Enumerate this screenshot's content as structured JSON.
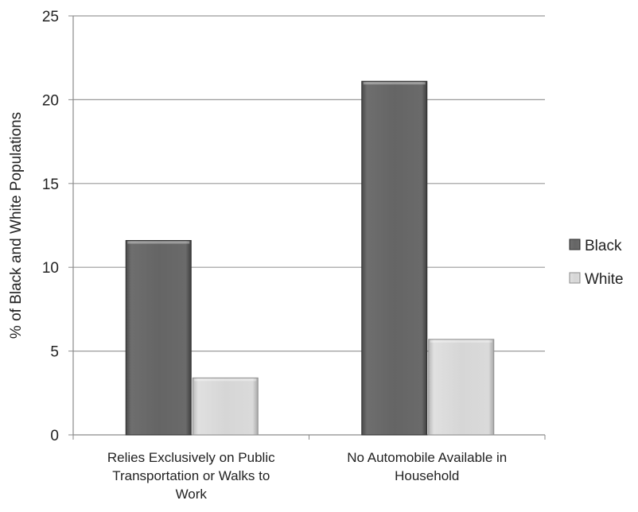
{
  "chart_data": {
    "type": "bar",
    "title": "",
    "xlabel": "",
    "ylabel": "% of Black and White Populations",
    "categories": [
      [
        "Relies Exclusively on Public",
        "Transportation or Walks to",
        "Work"
      ],
      [
        "No Automobile Available in",
        "Household"
      ]
    ],
    "series": [
      {
        "name": "Black",
        "values": [
          11.6,
          21.1
        ],
        "color": "#5f5f5f"
      },
      {
        "name": "White",
        "values": [
          3.4,
          5.7
        ],
        "color": "#d3d3d3"
      }
    ],
    "ylim": [
      0,
      25
    ],
    "yticks": [
      0,
      5,
      10,
      15,
      20,
      25
    ],
    "grid": true,
    "legend_position": "right"
  }
}
